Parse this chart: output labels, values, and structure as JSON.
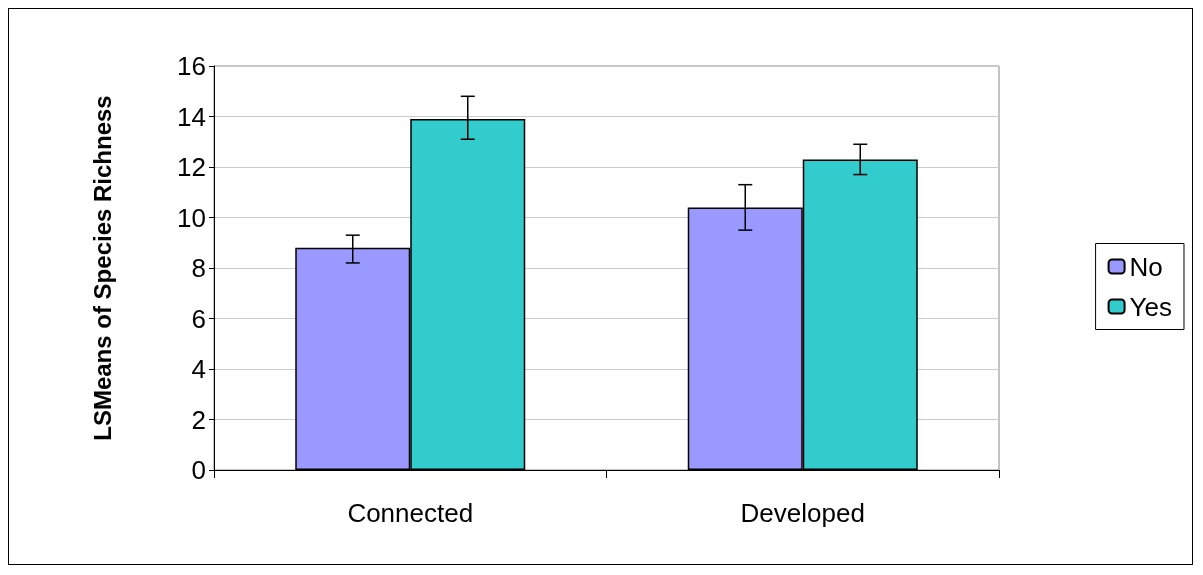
{
  "chart_data": {
    "type": "bar",
    "ylabel": "LSMeans of Species Richness",
    "categories": [
      "Connected",
      "Developed"
    ],
    "series": [
      {
        "name": "No",
        "color": "#9999ff",
        "values": [
          8.8,
          10.4
        ],
        "errors": [
          [
            8.2,
            9.3
          ],
          [
            9.5,
            11.3
          ]
        ]
      },
      {
        "name": "Yes",
        "color": "#33cccc",
        "values": [
          13.9,
          12.3
        ],
        "errors": [
          [
            13.1,
            14.8
          ],
          [
            11.7,
            12.9
          ]
        ]
      }
    ],
    "ylim": [
      0,
      16
    ],
    "yticks": [
      0,
      2,
      4,
      6,
      8,
      10,
      12,
      14,
      16
    ],
    "grid": "y",
    "legend": "right"
  }
}
